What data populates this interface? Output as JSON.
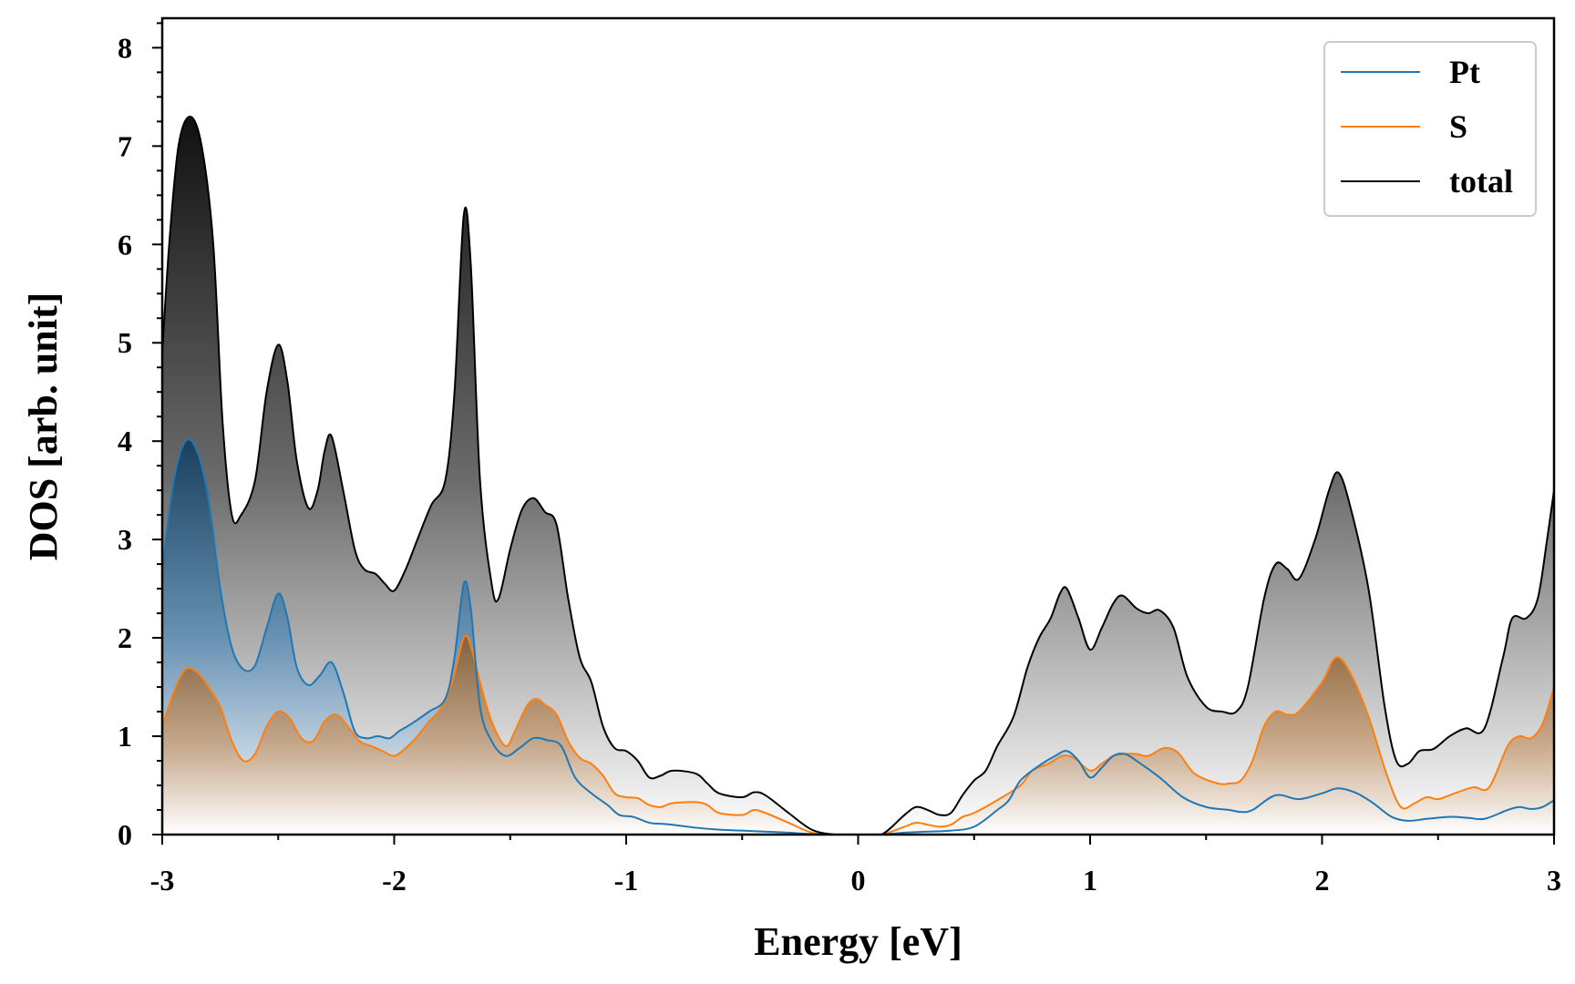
{
  "chart_data": {
    "type": "area",
    "xlabel": "Energy [eV]",
    "ylabel": "DOS [arb. unit]",
    "xlim": [
      -3,
      3
    ],
    "ylim": [
      0,
      8.3
    ],
    "xticks": [
      -3,
      -2,
      -1,
      0,
      1,
      2,
      3
    ],
    "yticks": [
      0,
      1,
      2,
      3,
      4,
      5,
      6,
      7,
      8
    ],
    "legend_position": "top-right",
    "grid": false,
    "series": [
      {
        "name": "Pt",
        "color": "#1f77b4",
        "points": [
          [
            -3.0,
            2.7
          ],
          [
            -2.95,
            3.6
          ],
          [
            -2.9,
            4.0
          ],
          [
            -2.85,
            3.9
          ],
          [
            -2.8,
            3.4
          ],
          [
            -2.75,
            2.5
          ],
          [
            -2.7,
            1.9
          ],
          [
            -2.65,
            1.68
          ],
          [
            -2.6,
            1.72
          ],
          [
            -2.55,
            2.1
          ],
          [
            -2.5,
            2.45
          ],
          [
            -2.46,
            2.2
          ],
          [
            -2.42,
            1.7
          ],
          [
            -2.37,
            1.52
          ],
          [
            -2.32,
            1.62
          ],
          [
            -2.27,
            1.75
          ],
          [
            -2.22,
            1.45
          ],
          [
            -2.17,
            1.05
          ],
          [
            -2.12,
            0.98
          ],
          [
            -2.07,
            1.0
          ],
          [
            -2.02,
            0.98
          ],
          [
            -1.98,
            1.05
          ],
          [
            -1.93,
            1.12
          ],
          [
            -1.85,
            1.25
          ],
          [
            -1.78,
            1.38
          ],
          [
            -1.74,
            1.8
          ],
          [
            -1.7,
            2.55
          ],
          [
            -1.67,
            2.3
          ],
          [
            -1.63,
            1.3
          ],
          [
            -1.58,
            0.95
          ],
          [
            -1.52,
            0.8
          ],
          [
            -1.46,
            0.88
          ],
          [
            -1.4,
            0.98
          ],
          [
            -1.34,
            0.96
          ],
          [
            -1.28,
            0.9
          ],
          [
            -1.22,
            0.58
          ],
          [
            -1.15,
            0.42
          ],
          [
            -1.08,
            0.3
          ],
          [
            -1.03,
            0.2
          ],
          [
            -0.97,
            0.18
          ],
          [
            -0.9,
            0.12
          ],
          [
            -0.85,
            0.11
          ],
          [
            -0.8,
            0.1
          ],
          [
            -0.7,
            0.07
          ],
          [
            -0.6,
            0.05
          ],
          [
            -0.5,
            0.04
          ],
          [
            -0.4,
            0.03
          ],
          [
            -0.3,
            0.02
          ],
          [
            -0.2,
            0.005
          ],
          [
            -0.1,
            0.0
          ],
          [
            0.0,
            0.0
          ],
          [
            0.1,
            0.0
          ],
          [
            0.2,
            0.02
          ],
          [
            0.3,
            0.03
          ],
          [
            0.4,
            0.04
          ],
          [
            0.5,
            0.08
          ],
          [
            0.6,
            0.25
          ],
          [
            0.65,
            0.35
          ],
          [
            0.7,
            0.55
          ],
          [
            0.78,
            0.7
          ],
          [
            0.85,
            0.8
          ],
          [
            0.9,
            0.85
          ],
          [
            0.95,
            0.75
          ],
          [
            1.0,
            0.58
          ],
          [
            1.05,
            0.68
          ],
          [
            1.1,
            0.8
          ],
          [
            1.15,
            0.82
          ],
          [
            1.2,
            0.75
          ],
          [
            1.3,
            0.58
          ],
          [
            1.4,
            0.38
          ],
          [
            1.5,
            0.28
          ],
          [
            1.6,
            0.25
          ],
          [
            1.65,
            0.23
          ],
          [
            1.7,
            0.25
          ],
          [
            1.8,
            0.4
          ],
          [
            1.9,
            0.36
          ],
          [
            2.0,
            0.42
          ],
          [
            2.07,
            0.47
          ],
          [
            2.15,
            0.42
          ],
          [
            2.22,
            0.32
          ],
          [
            2.3,
            0.18
          ],
          [
            2.37,
            0.14
          ],
          [
            2.45,
            0.16
          ],
          [
            2.55,
            0.18
          ],
          [
            2.63,
            0.17
          ],
          [
            2.7,
            0.16
          ],
          [
            2.8,
            0.25
          ],
          [
            2.85,
            0.28
          ],
          [
            2.9,
            0.26
          ],
          [
            2.95,
            0.28
          ],
          [
            3.0,
            0.35
          ]
        ]
      },
      {
        "name": "S",
        "color": "#ff7f0e",
        "points": [
          [
            -3.0,
            1.1
          ],
          [
            -2.95,
            1.45
          ],
          [
            -2.9,
            1.68
          ],
          [
            -2.85,
            1.65
          ],
          [
            -2.8,
            1.5
          ],
          [
            -2.75,
            1.3
          ],
          [
            -2.7,
            0.95
          ],
          [
            -2.65,
            0.75
          ],
          [
            -2.6,
            0.82
          ],
          [
            -2.55,
            1.1
          ],
          [
            -2.5,
            1.25
          ],
          [
            -2.45,
            1.18
          ],
          [
            -2.4,
            0.98
          ],
          [
            -2.35,
            0.95
          ],
          [
            -2.3,
            1.15
          ],
          [
            -2.25,
            1.22
          ],
          [
            -2.2,
            1.1
          ],
          [
            -2.15,
            0.95
          ],
          [
            -2.1,
            0.9
          ],
          [
            -2.05,
            0.85
          ],
          [
            -2.0,
            0.8
          ],
          [
            -1.95,
            0.88
          ],
          [
            -1.9,
            1.0
          ],
          [
            -1.85,
            1.15
          ],
          [
            -1.8,
            1.28
          ],
          [
            -1.75,
            1.55
          ],
          [
            -1.7,
            2.0
          ],
          [
            -1.67,
            1.92
          ],
          [
            -1.63,
            1.55
          ],
          [
            -1.58,
            1.15
          ],
          [
            -1.52,
            0.9
          ],
          [
            -1.48,
            1.05
          ],
          [
            -1.43,
            1.3
          ],
          [
            -1.39,
            1.38
          ],
          [
            -1.35,
            1.32
          ],
          [
            -1.3,
            1.22
          ],
          [
            -1.25,
            0.95
          ],
          [
            -1.2,
            0.78
          ],
          [
            -1.15,
            0.72
          ],
          [
            -1.1,
            0.6
          ],
          [
            -1.05,
            0.42
          ],
          [
            -1.0,
            0.38
          ],
          [
            -0.95,
            0.37
          ],
          [
            -0.9,
            0.3
          ],
          [
            -0.85,
            0.28
          ],
          [
            -0.8,
            0.32
          ],
          [
            -0.7,
            0.33
          ],
          [
            -0.65,
            0.3
          ],
          [
            -0.6,
            0.22
          ],
          [
            -0.5,
            0.2
          ],
          [
            -0.45,
            0.25
          ],
          [
            -0.4,
            0.22
          ],
          [
            -0.3,
            0.12
          ],
          [
            -0.2,
            0.02
          ],
          [
            -0.1,
            0.0
          ],
          [
            0.0,
            0.0
          ],
          [
            0.1,
            0.0
          ],
          [
            0.2,
            0.08
          ],
          [
            0.25,
            0.12
          ],
          [
            0.3,
            0.1
          ],
          [
            0.35,
            0.08
          ],
          [
            0.4,
            0.1
          ],
          [
            0.45,
            0.18
          ],
          [
            0.5,
            0.22
          ],
          [
            0.6,
            0.35
          ],
          [
            0.7,
            0.5
          ],
          [
            0.75,
            0.65
          ],
          [
            0.82,
            0.72
          ],
          [
            0.88,
            0.8
          ],
          [
            0.93,
            0.78
          ],
          [
            1.0,
            0.65
          ],
          [
            1.05,
            0.72
          ],
          [
            1.1,
            0.8
          ],
          [
            1.15,
            0.82
          ],
          [
            1.2,
            0.82
          ],
          [
            1.25,
            0.8
          ],
          [
            1.32,
            0.88
          ],
          [
            1.38,
            0.83
          ],
          [
            1.45,
            0.62
          ],
          [
            1.55,
            0.52
          ],
          [
            1.6,
            0.52
          ],
          [
            1.65,
            0.55
          ],
          [
            1.7,
            0.75
          ],
          [
            1.75,
            1.1
          ],
          [
            1.8,
            1.25
          ],
          [
            1.85,
            1.22
          ],
          [
            1.9,
            1.25
          ],
          [
            2.0,
            1.55
          ],
          [
            2.06,
            1.8
          ],
          [
            2.12,
            1.65
          ],
          [
            2.2,
            1.2
          ],
          [
            2.28,
            0.6
          ],
          [
            2.34,
            0.28
          ],
          [
            2.4,
            0.32
          ],
          [
            2.45,
            0.38
          ],
          [
            2.5,
            0.36
          ],
          [
            2.55,
            0.4
          ],
          [
            2.65,
            0.48
          ],
          [
            2.72,
            0.48
          ],
          [
            2.8,
            0.9
          ],
          [
            2.85,
            1.0
          ],
          [
            2.9,
            0.98
          ],
          [
            2.95,
            1.12
          ],
          [
            3.0,
            1.5
          ]
        ]
      },
      {
        "name": "total",
        "color": "#000000",
        "points": [
          [
            -3.0,
            4.9
          ],
          [
            -2.97,
            6.0
          ],
          [
            -2.93,
            7.0
          ],
          [
            -2.88,
            7.3
          ],
          [
            -2.83,
            7.0
          ],
          [
            -2.78,
            6.0
          ],
          [
            -2.74,
            4.2
          ],
          [
            -2.7,
            3.25
          ],
          [
            -2.66,
            3.25
          ],
          [
            -2.6,
            3.6
          ],
          [
            -2.55,
            4.5
          ],
          [
            -2.5,
            4.98
          ],
          [
            -2.46,
            4.6
          ],
          [
            -2.42,
            3.8
          ],
          [
            -2.37,
            3.32
          ],
          [
            -2.33,
            3.5
          ],
          [
            -2.3,
            3.9
          ],
          [
            -2.27,
            4.05
          ],
          [
            -2.22,
            3.5
          ],
          [
            -2.17,
            2.9
          ],
          [
            -2.13,
            2.7
          ],
          [
            -2.08,
            2.65
          ],
          [
            -2.04,
            2.55
          ],
          [
            -2.0,
            2.48
          ],
          [
            -1.95,
            2.7
          ],
          [
            -1.9,
            3.0
          ],
          [
            -1.84,
            3.35
          ],
          [
            -1.78,
            3.6
          ],
          [
            -1.74,
            4.5
          ],
          [
            -1.7,
            6.3
          ],
          [
            -1.67,
            5.8
          ],
          [
            -1.63,
            3.6
          ],
          [
            -1.58,
            2.55
          ],
          [
            -1.55,
            2.4
          ],
          [
            -1.5,
            2.9
          ],
          [
            -1.45,
            3.3
          ],
          [
            -1.4,
            3.42
          ],
          [
            -1.35,
            3.28
          ],
          [
            -1.3,
            3.15
          ],
          [
            -1.25,
            2.4
          ],
          [
            -1.2,
            1.8
          ],
          [
            -1.15,
            1.55
          ],
          [
            -1.1,
            1.1
          ],
          [
            -1.05,
            0.88
          ],
          [
            -1.0,
            0.85
          ],
          [
            -0.95,
            0.75
          ],
          [
            -0.9,
            0.58
          ],
          [
            -0.85,
            0.6
          ],
          [
            -0.8,
            0.65
          ],
          [
            -0.7,
            0.62
          ],
          [
            -0.65,
            0.52
          ],
          [
            -0.6,
            0.42
          ],
          [
            -0.5,
            0.38
          ],
          [
            -0.45,
            0.43
          ],
          [
            -0.4,
            0.4
          ],
          [
            -0.3,
            0.22
          ],
          [
            -0.2,
            0.05
          ],
          [
            -0.1,
            0.0
          ],
          [
            0.0,
            0.0
          ],
          [
            0.1,
            0.0
          ],
          [
            0.2,
            0.2
          ],
          [
            0.25,
            0.28
          ],
          [
            0.3,
            0.25
          ],
          [
            0.35,
            0.2
          ],
          [
            0.4,
            0.22
          ],
          [
            0.45,
            0.4
          ],
          [
            0.5,
            0.55
          ],
          [
            0.55,
            0.65
          ],
          [
            0.6,
            0.9
          ],
          [
            0.67,
            1.2
          ],
          [
            0.73,
            1.7
          ],
          [
            0.78,
            2.0
          ],
          [
            0.83,
            2.2
          ],
          [
            0.87,
            2.45
          ],
          [
            0.9,
            2.5
          ],
          [
            0.95,
            2.2
          ],
          [
            1.0,
            1.88
          ],
          [
            1.05,
            2.1
          ],
          [
            1.1,
            2.35
          ],
          [
            1.14,
            2.43
          ],
          [
            1.2,
            2.3
          ],
          [
            1.25,
            2.25
          ],
          [
            1.3,
            2.28
          ],
          [
            1.36,
            2.1
          ],
          [
            1.42,
            1.6
          ],
          [
            1.5,
            1.3
          ],
          [
            1.57,
            1.25
          ],
          [
            1.63,
            1.25
          ],
          [
            1.68,
            1.5
          ],
          [
            1.75,
            2.4
          ],
          [
            1.8,
            2.75
          ],
          [
            1.85,
            2.7
          ],
          [
            1.9,
            2.6
          ],
          [
            1.97,
            3.0
          ],
          [
            2.03,
            3.5
          ],
          [
            2.07,
            3.68
          ],
          [
            2.12,
            3.35
          ],
          [
            2.2,
            2.5
          ],
          [
            2.27,
            1.3
          ],
          [
            2.32,
            0.75
          ],
          [
            2.37,
            0.72
          ],
          [
            2.42,
            0.85
          ],
          [
            2.48,
            0.87
          ],
          [
            2.55,
            1.0
          ],
          [
            2.62,
            1.08
          ],
          [
            2.7,
            1.08
          ],
          [
            2.78,
            1.8
          ],
          [
            2.82,
            2.2
          ],
          [
            2.88,
            2.2
          ],
          [
            2.93,
            2.4
          ],
          [
            2.97,
            3.0
          ],
          [
            3.0,
            3.5
          ]
        ]
      }
    ]
  }
}
